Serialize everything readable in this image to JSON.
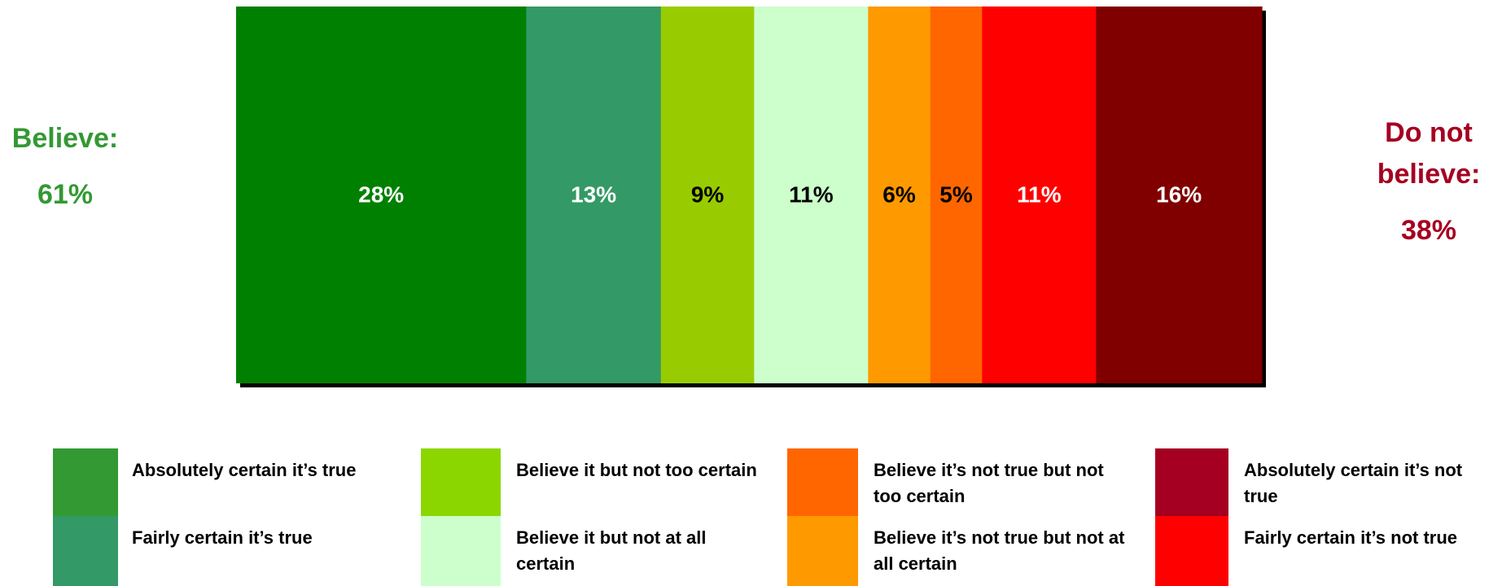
{
  "chart_data": {
    "type": "bar",
    "orientation": "horizontal-stacked-100",
    "series": [
      {
        "name": "Absolutely certain it’s true",
        "value": 28,
        "label": "28%",
        "color": "#008000",
        "text_color": "#FFFFFF"
      },
      {
        "name": "Fairly certain it’s true",
        "value": 13,
        "label": "13%",
        "color": "#339966",
        "text_color": "#FFFFFF"
      },
      {
        "name": "Believe it but not too certain",
        "value": 9,
        "label": "9%",
        "color": "#99CC00",
        "text_color": "#000000"
      },
      {
        "name": "Believe it but not at all certain",
        "value": 11,
        "label": "11%",
        "color": "#CCFFCC",
        "text_color": "#000000"
      },
      {
        "name": "Believe it’s not true but not at all certain",
        "value": 6,
        "label": "6%",
        "color": "#FF9900",
        "text_color": "#000000"
      },
      {
        "name": "Believe it’s not true but not too certain",
        "value": 5,
        "label": "5%",
        "color": "#FF6600",
        "text_color": "#000000"
      },
      {
        "name": "Fairly certain it’s not true",
        "value": 11,
        "label": "11%",
        "color": "#FF0000",
        "text_color": "#FFFFFF"
      },
      {
        "name": "Absolutely certain it’s not true",
        "value": 16,
        "label": "16%",
        "color": "#800000",
        "text_color": "#FFFFFF"
      }
    ],
    "xlim": [
      0,
      99
    ],
    "legend": [
      {
        "label": "Absolutely certain it’s true",
        "color": "#339933"
      },
      {
        "label": "Fairly certain it’s true",
        "color": "#339966"
      },
      {
        "label": "Believe it but not too certain",
        "color": "#8CD600"
      },
      {
        "label": "Believe it but not at all certain",
        "color": "#CCFFCC"
      },
      {
        "label": "Believe it’s not true but not too certain",
        "color": "#FF6600"
      },
      {
        "label": "Believe it’s not true but not at all certain",
        "color": "#FF9900"
      },
      {
        "label": "Absolutely certain it’s not true",
        "color": "#A50021"
      },
      {
        "label": "Fairly certain it’s not true",
        "color": "#FF0000"
      }
    ],
    "legend_placement": "bottom"
  },
  "summary": {
    "believe": {
      "label": "Believe:",
      "value": "61%",
      "color": "#339933"
    },
    "disbelieve": {
      "label": "Do not believe:",
      "value": "38%",
      "color": "#A50021"
    }
  }
}
